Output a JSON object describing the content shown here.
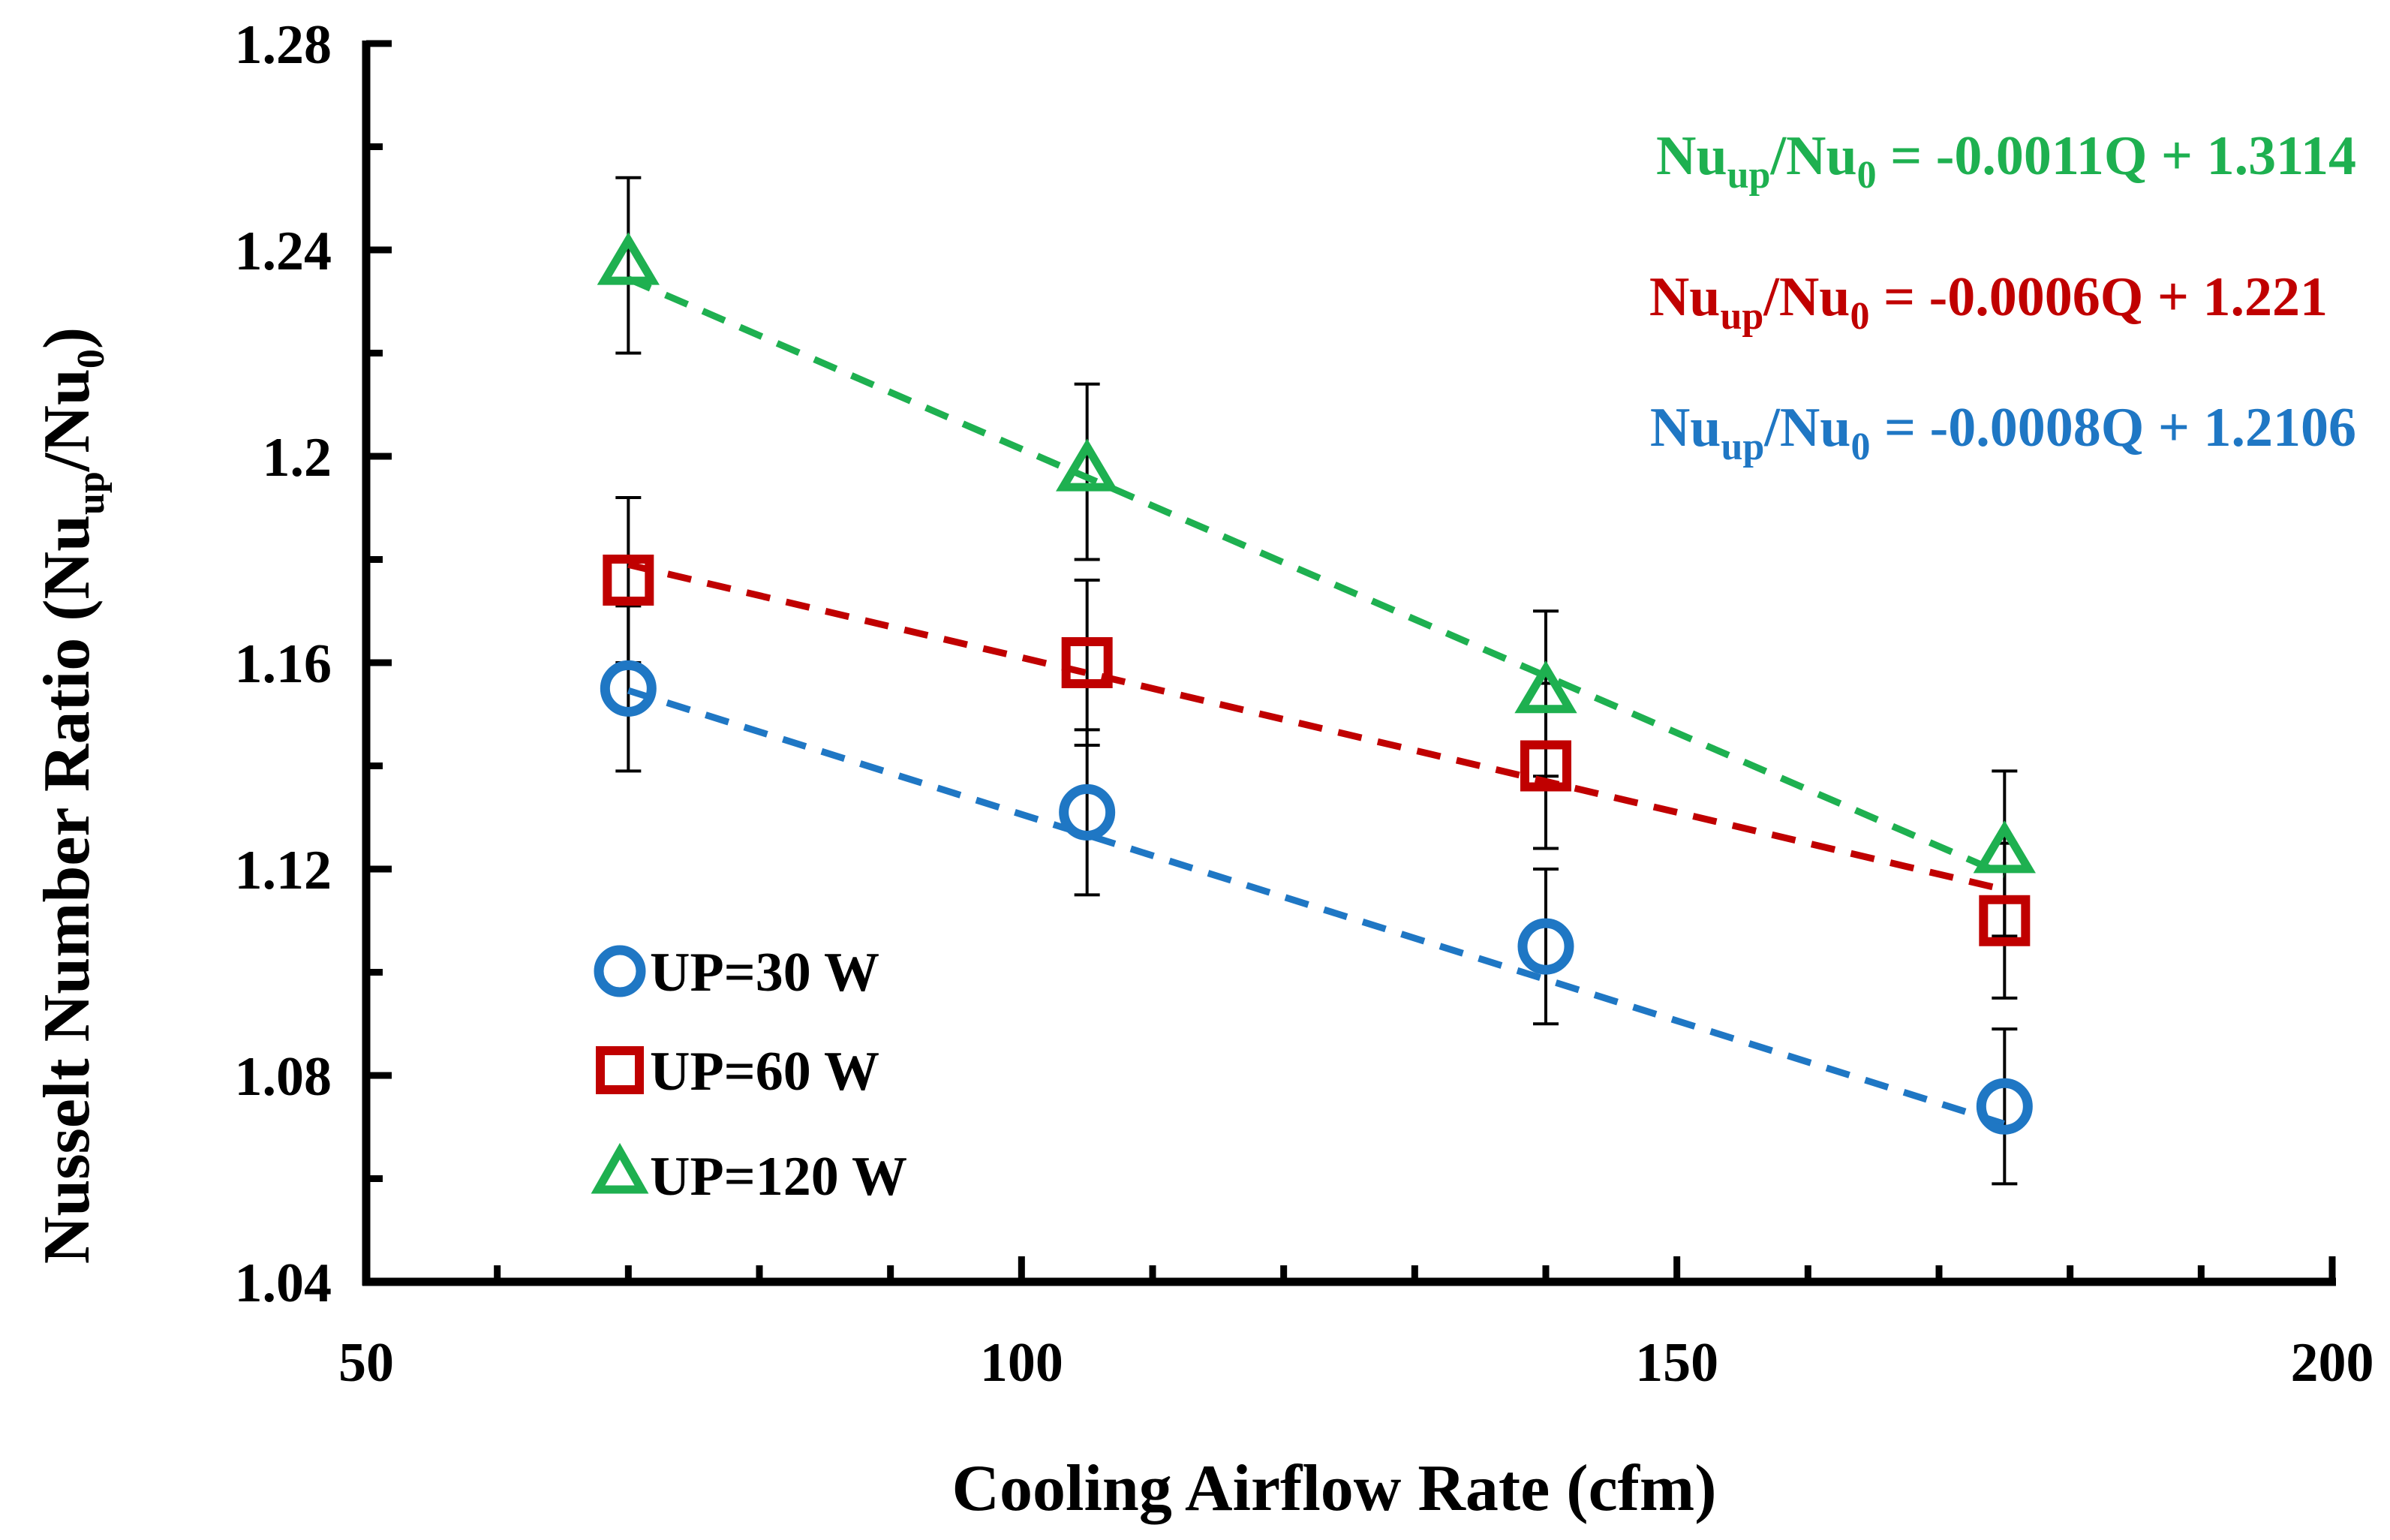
{
  "chart_data": {
    "type": "scatter",
    "xlabel": "Cooling Airflow Rate (cfm)",
    "ylabel": {
      "prefix": "Nusselt Number Ratio (Nu",
      "sub1": "up",
      "mid": "/Nu",
      "sub2": "0",
      "suffix": ")"
    },
    "xlim": [
      50,
      200
    ],
    "ylim": [
      1.04,
      1.28
    ],
    "x_major_ticks": [
      50,
      100,
      150,
      200
    ],
    "x_tick_labels": [
      "50",
      "100",
      "150",
      "200"
    ],
    "x_minor_step": 10,
    "y_major_ticks": [
      1.04,
      1.08,
      1.12,
      1.16,
      1.2,
      1.24,
      1.28
    ],
    "y_tick_labels": [
      "1.04",
      "1.08",
      "1.12",
      "1.16",
      "1.2",
      "1.24",
      "1.28"
    ],
    "y_minor_step": 0.02,
    "legend_position": "bottom-left",
    "series": [
      {
        "name": "UP=30 W",
        "marker": "circle",
        "color": "#1f77c4",
        "x": [
          70,
          105,
          140,
          175
        ],
        "y": [
          1.155,
          1.131,
          1.105,
          1.074
        ],
        "err": [
          0.016,
          0.016,
          0.015,
          0.015
        ],
        "fit": {
          "slope": -0.0008,
          "intercept": 1.2106
        }
      },
      {
        "name": "UP=60 W",
        "marker": "square",
        "color": "#c00000",
        "x": [
          70,
          105,
          140,
          175
        ],
        "y": [
          1.176,
          1.16,
          1.14,
          1.11
        ],
        "err": [
          0.016,
          0.016,
          0.016,
          0.015
        ],
        "fit": {
          "slope": -0.0006,
          "intercept": 1.221
        }
      },
      {
        "name": "UP=120 W",
        "marker": "triangle",
        "color": "#1eb050",
        "x": [
          70,
          105,
          140,
          175
        ],
        "y": [
          1.237,
          1.197,
          1.154,
          1.123
        ],
        "err": [
          0.017,
          0.017,
          0.016,
          0.016
        ],
        "fit": {
          "slope": -0.0011,
          "intercept": 1.3114
        }
      }
    ],
    "annotations": [
      {
        "series": "UP=120 W",
        "color": "#1eb050",
        "lhs_a": "Nu",
        "lhs_sub_a": "up",
        "lhs_b": "/Nu",
        "lhs_sub_b": "0",
        "rhs": " = -0.0011Q + 1.3114"
      },
      {
        "series": "UP=60 W",
        "color": "#c00000",
        "lhs_a": "Nu",
        "lhs_sub_a": "up",
        "lhs_b": "/Nu",
        "lhs_sub_b": "0",
        "rhs": " = -0.0006Q + 1.221"
      },
      {
        "series": "UP=30 W",
        "color": "#1f77c4",
        "lhs_a": "Nu",
        "lhs_sub_a": "up",
        "lhs_b": "/Nu",
        "lhs_sub_b": "0",
        "rhs": " = -0.0008Q + 1.2106"
      }
    ]
  }
}
